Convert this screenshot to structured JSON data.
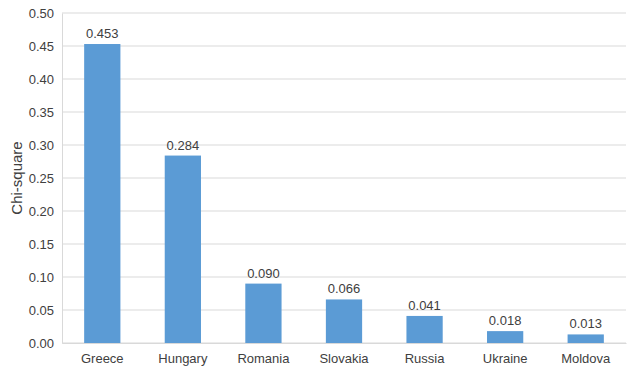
{
  "chart_data": {
    "type": "bar",
    "y_label": "Chi-square",
    "categories": [
      "Greece",
      "Hungary",
      "Romania",
      "Slovakia",
      "Russia",
      "Ukraine",
      "Moldova"
    ],
    "values": [
      0.453,
      0.284,
      0.09,
      0.066,
      0.041,
      0.018,
      0.013
    ],
    "value_labels": [
      "0.453",
      "0.284",
      "0.090",
      "0.066",
      "0.041",
      "0.018",
      "0.013"
    ],
    "color": "#5b9bd5",
    "ylim": [
      0,
      0.5
    ],
    "yticks": [
      {
        "value": 0,
        "label": "0.00"
      },
      {
        "value": 0.05,
        "label": "0.05"
      },
      {
        "value": 0.1,
        "label": "0.10"
      },
      {
        "value": 0.15,
        "label": "0.15"
      },
      {
        "value": 0.2,
        "label": "0.20"
      },
      {
        "value": 0.25,
        "label": "0.25"
      },
      {
        "value": 0.3,
        "label": "0.30"
      },
      {
        "value": 0.35,
        "label": "0.35"
      },
      {
        "value": 0.4,
        "label": "0.40"
      },
      {
        "value": 0.45,
        "label": "0.45"
      },
      {
        "value": 0.5,
        "label": "0.50"
      }
    ],
    "grid": true,
    "data_labels": true
  }
}
